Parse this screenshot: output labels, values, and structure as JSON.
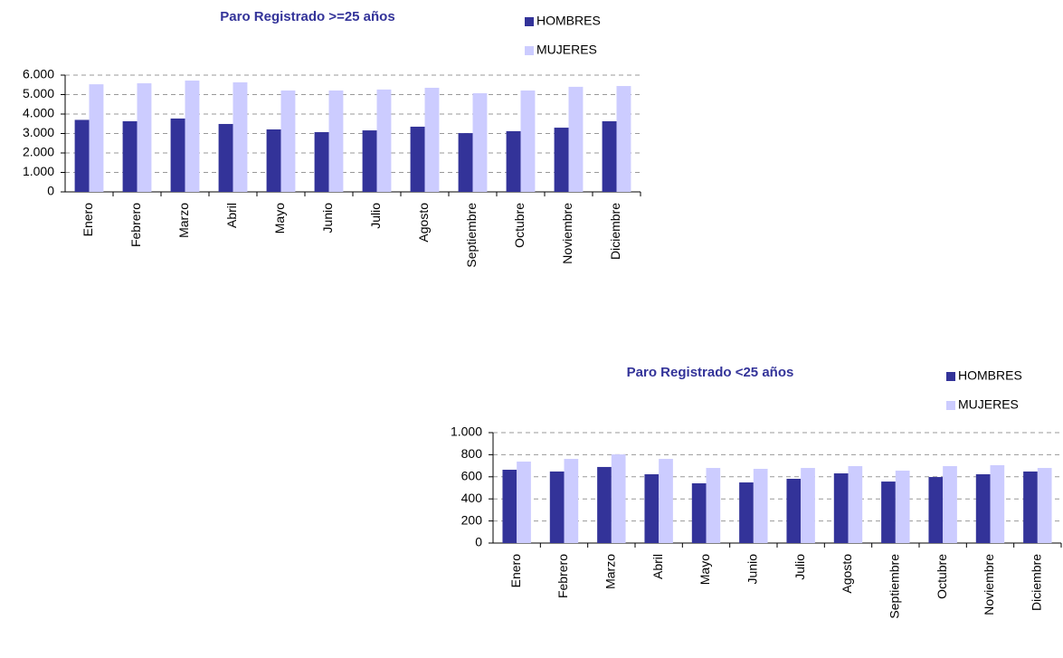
{
  "chart_data": [
    {
      "type": "bar",
      "title": "Paro Registrado >=25 años",
      "categories": [
        "Enero",
        "Febrero",
        "Marzo",
        "Abril",
        "Mayo",
        "Junio",
        "Julio",
        "Agosto",
        "Septiembre",
        "Octubre",
        "Noviembre",
        "Diciembre"
      ],
      "series": [
        {
          "name": "HOMBRES",
          "color": "#333399",
          "values": [
            3700,
            3630,
            3770,
            3490,
            3210,
            3070,
            3160,
            3350,
            3020,
            3120,
            3300,
            3630
          ]
        },
        {
          "name": "MUJERES",
          "color": "#ccccff",
          "values": [
            5530,
            5580,
            5720,
            5630,
            5210,
            5210,
            5260,
            5350,
            5070,
            5210,
            5400,
            5440
          ]
        }
      ],
      "ylim": [
        0,
        6000
      ],
      "yticks": [
        0,
        {
          "value": 1000,
          "label": "1.000"
        },
        {
          "value": 2000,
          "label": "2.000"
        },
        {
          "value": 3000,
          "label": "3.000"
        },
        {
          "value": 4000,
          "label": "4.000"
        },
        {
          "value": 5000,
          "label": "5.000"
        },
        {
          "value": 6000,
          "label": "6.000"
        }
      ],
      "grid": true
    },
    {
      "type": "bar",
      "title": "Paro Registrado <25 años",
      "categories": [
        "Enero",
        "Febrero",
        "Marzo",
        "Abril",
        "Mayo",
        "Junio",
        "Julio",
        "Agosto",
        "Septiembre",
        "Octubre",
        "Noviembre",
        "Diciembre"
      ],
      "series": [
        {
          "name": "HOMBRES",
          "color": "#333399",
          "values": [
            664,
            648,
            689,
            623,
            541,
            549,
            582,
            631,
            557,
            598,
            623,
            648
          ]
        },
        {
          "name": "MUJERES",
          "color": "#ccccff",
          "values": [
            738,
            762,
            803,
            762,
            680,
            672,
            680,
            697,
            656,
            697,
            705,
            680
          ]
        }
      ],
      "ylim": [
        0,
        1000
      ],
      "yticks": [
        0,
        200,
        400,
        600,
        800,
        {
          "value": 1000,
          "label": "1.000"
        }
      ],
      "grid": true
    }
  ]
}
